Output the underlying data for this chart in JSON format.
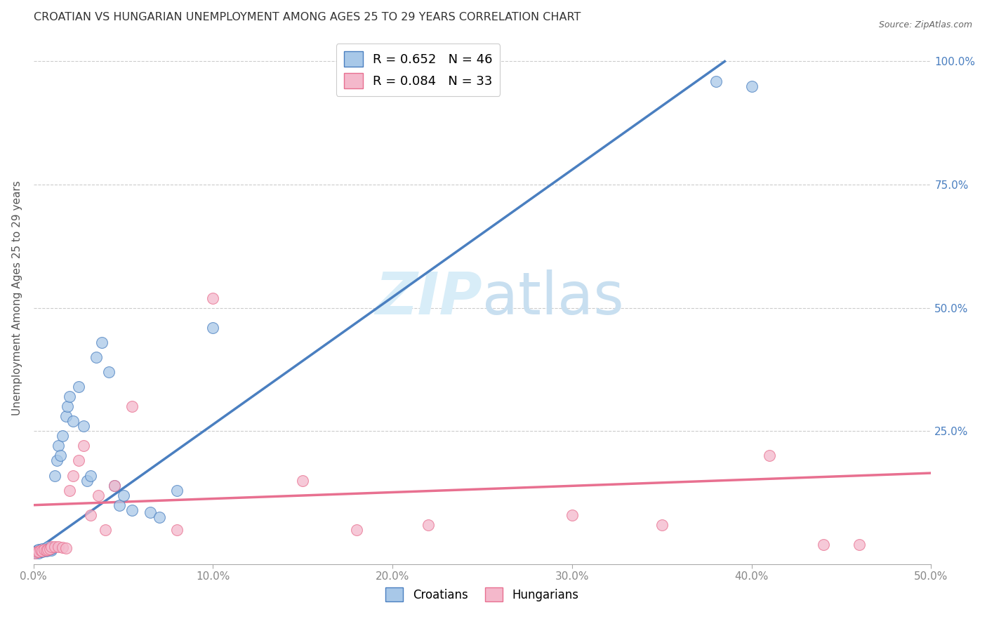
{
  "title": "CROATIAN VS HUNGARIAN UNEMPLOYMENT AMONG AGES 25 TO 29 YEARS CORRELATION CHART",
  "source": "Source: ZipAtlas.com",
  "xlabel_ticks": [
    "0.0%",
    "10.0%",
    "20.0%",
    "30.0%",
    "40.0%",
    "50.0%"
  ],
  "xlabel_vals": [
    0.0,
    0.1,
    0.2,
    0.3,
    0.4,
    0.5
  ],
  "ylabel": "Unemployment Among Ages 25 to 29 years",
  "ylabel_ticks": [
    "100.0%",
    "75.0%",
    "50.0%",
    "25.0%"
  ],
  "ylabel_vals": [
    1.0,
    0.75,
    0.5,
    0.25
  ],
  "xlim": [
    0.0,
    0.5
  ],
  "ylim": [
    -0.02,
    1.06
  ],
  "croatians_R": 0.652,
  "croatians_N": 46,
  "hungarians_R": 0.084,
  "hungarians_N": 33,
  "croatian_color": "#a8c8e8",
  "hungarian_color": "#f4b8cb",
  "croatian_line_color": "#4a7fc0",
  "hungarian_line_color": "#e87090",
  "watermark_color": "#d8edf8",
  "grid_color": "#cccccc",
  "tick_color": "#888888",
  "title_color": "#333333",
  "source_color": "#666666",
  "cro_x": [
    0.001,
    0.001,
    0.002,
    0.002,
    0.003,
    0.003,
    0.003,
    0.004,
    0.004,
    0.005,
    0.005,
    0.006,
    0.006,
    0.007,
    0.008,
    0.008,
    0.009,
    0.009,
    0.01,
    0.01,
    0.012,
    0.013,
    0.014,
    0.015,
    0.016,
    0.018,
    0.019,
    0.02,
    0.022,
    0.025,
    0.028,
    0.03,
    0.032,
    0.035,
    0.038,
    0.042,
    0.045,
    0.048,
    0.05,
    0.055,
    0.065,
    0.07,
    0.08,
    0.1,
    0.38,
    0.4
  ],
  "cro_y": [
    0.003,
    0.006,
    0.004,
    0.008,
    0.003,
    0.005,
    0.01,
    0.006,
    0.009,
    0.005,
    0.012,
    0.008,
    0.01,
    0.007,
    0.008,
    0.015,
    0.01,
    0.013,
    0.008,
    0.012,
    0.16,
    0.19,
    0.22,
    0.2,
    0.24,
    0.28,
    0.3,
    0.32,
    0.27,
    0.34,
    0.26,
    0.15,
    0.16,
    0.4,
    0.43,
    0.37,
    0.14,
    0.1,
    0.12,
    0.09,
    0.085,
    0.075,
    0.13,
    0.46,
    0.96,
    0.95
  ],
  "hun_x": [
    0.001,
    0.002,
    0.003,
    0.004,
    0.005,
    0.006,
    0.007,
    0.008,
    0.009,
    0.01,
    0.012,
    0.014,
    0.016,
    0.018,
    0.02,
    0.022,
    0.025,
    0.028,
    0.032,
    0.036,
    0.04,
    0.045,
    0.055,
    0.08,
    0.1,
    0.15,
    0.18,
    0.22,
    0.3,
    0.35,
    0.41,
    0.44,
    0.46
  ],
  "hun_y": [
    0.003,
    0.005,
    0.005,
    0.008,
    0.007,
    0.01,
    0.008,
    0.01,
    0.012,
    0.015,
    0.015,
    0.016,
    0.014,
    0.013,
    0.13,
    0.16,
    0.19,
    0.22,
    0.08,
    0.12,
    0.05,
    0.14,
    0.3,
    0.05,
    0.52,
    0.15,
    0.05,
    0.06,
    0.08,
    0.06,
    0.2,
    0.02,
    0.02
  ],
  "cro_line_x0": 0.0,
  "cro_line_y0": 0.005,
  "cro_line_x1": 0.385,
  "cro_line_y1": 1.0,
  "hun_line_x0": 0.0,
  "hun_line_y0": 0.1,
  "hun_line_x1": 0.5,
  "hun_line_y1": 0.165
}
